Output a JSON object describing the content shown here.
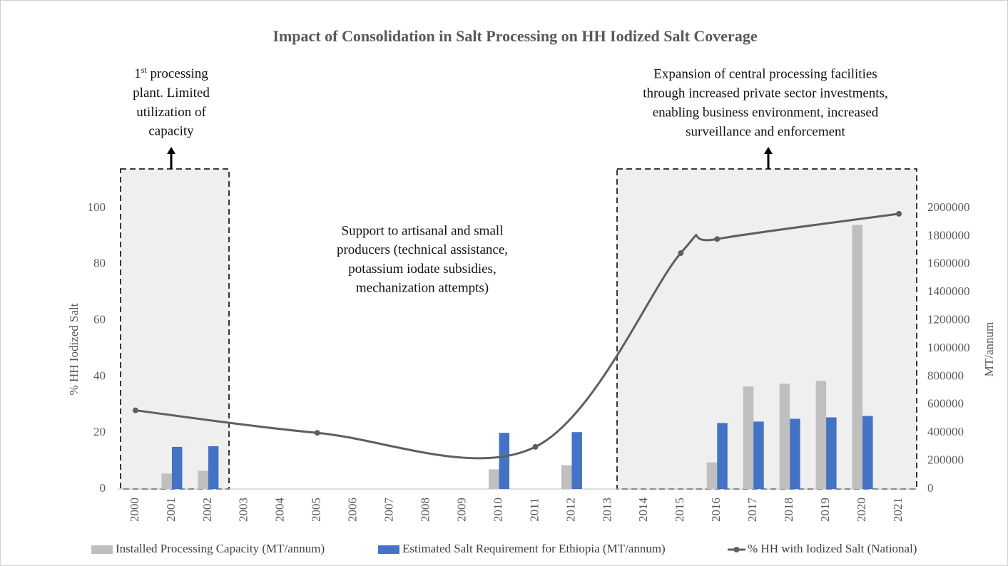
{
  "chart_data": {
    "type": "combo",
    "title": "Impact of Consolidation in Salt Processing on HH Iodized Salt Coverage",
    "ylabel": "% HH Iodized Salt",
    "y2label": "MT/annum",
    "categories": [
      "2000",
      "2001",
      "2002",
      "2003",
      "2004",
      "2005",
      "2006",
      "2007",
      "2008",
      "2009",
      "2010",
      "2011",
      "2012",
      "2013",
      "2014",
      "2015",
      "2016",
      "2017",
      "2018",
      "2019",
      "2020",
      "2021"
    ],
    "series": [
      {
        "name": "Installed Processing Capacity (MT/annum)",
        "type": "bar",
        "axis": "y2",
        "color": "#bfbfbf",
        "values": [
          null,
          110000,
          130000,
          null,
          null,
          null,
          null,
          null,
          null,
          null,
          140000,
          null,
          170000,
          null,
          null,
          null,
          190000,
          730000,
          750000,
          770000,
          1880000,
          null
        ]
      },
      {
        "name": "Estimated Salt Requirement for Ethiopia (MT/annum)",
        "type": "bar",
        "axis": "y2",
        "color": "#4472c4",
        "values": [
          null,
          300000,
          305000,
          null,
          null,
          null,
          null,
          null,
          null,
          null,
          400000,
          null,
          405000,
          null,
          null,
          null,
          470000,
          480000,
          500000,
          510000,
          520000,
          null
        ]
      },
      {
        "name": "% HH with Iodized Salt (National)",
        "type": "line",
        "color": "#5f5f5f",
        "x": [
          2000,
          2005,
          2011,
          2015,
          2016,
          2021
        ],
        "values": [
          28,
          20,
          15,
          84,
          89,
          98
        ]
      }
    ],
    "ylim": [
      0,
      100
    ],
    "yticks": [
      0,
      20,
      40,
      60,
      80,
      100
    ],
    "y2lim": [
      0,
      2000000
    ],
    "y2ticks": [
      0,
      200000,
      400000,
      600000,
      800000,
      1000000,
      1200000,
      1400000,
      1600000,
      1800000,
      2000000
    ],
    "annotations": [
      {
        "lines": [
          "1st processing",
          "plant. Limited",
          "utilization of",
          "capacity"
        ]
      },
      {
        "lines": [
          "Support to artisanal and small",
          "producers (technical assistance,",
          "potassium iodate subsidies,",
          "mechanization attempts)"
        ]
      },
      {
        "lines": [
          "Expansion of central processing facilities",
          "through increased private sector investments,",
          "enabling business environment, increased",
          "surveillance and enforcement"
        ]
      }
    ]
  }
}
